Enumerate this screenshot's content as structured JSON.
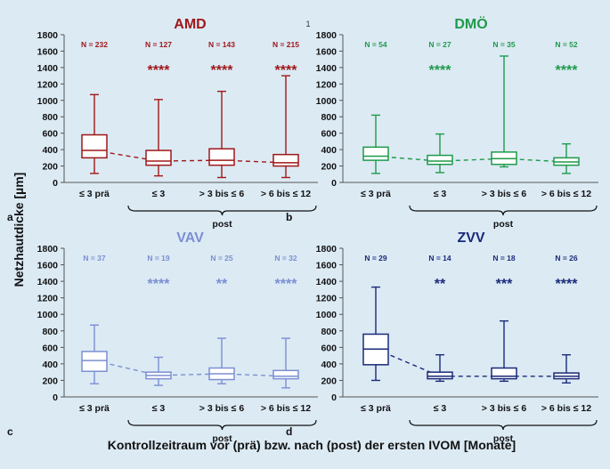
{
  "y_axis_label": "Netzhautdicke [µm]",
  "x_axis_label": "Kontrollzeitraum vor (prä) bzw. nach (post) der ersten IVOM [Monate]",
  "post_label": "post",
  "stray_mark": "1",
  "chart_data": [
    {
      "type": "box",
      "panel_letter": "a",
      "title": "AMD",
      "color": "#a01818",
      "categories": [
        "≤ 3 prä",
        "≤ 3",
        "> 3 bis ≤ 6",
        "> 6 bis ≤ 12"
      ],
      "n_labels": [
        "N = 232",
        "N = 127",
        "N = 143",
        "N = 215"
      ],
      "significance": [
        "",
        "****",
        "****",
        "****"
      ],
      "boxes": [
        {
          "min": 110,
          "q1": 300,
          "median": 390,
          "q3": 580,
          "max": 1070
        },
        {
          "min": 80,
          "q1": 210,
          "median": 260,
          "q3": 390,
          "max": 1010
        },
        {
          "min": 60,
          "q1": 210,
          "median": 270,
          "q3": 410,
          "max": 1110
        },
        {
          "min": 60,
          "q1": 200,
          "median": 240,
          "q3": 340,
          "max": 1300
        }
      ],
      "ylim": [
        0,
        1800
      ],
      "yticks": [
        0,
        200,
        400,
        600,
        800,
        1000,
        1200,
        1400,
        1600,
        1800
      ]
    },
    {
      "type": "box",
      "panel_letter": "b",
      "title": "DMÖ",
      "color": "#1f9a4a",
      "categories": [
        "≤ 3 prä",
        "≤ 3",
        "> 3 bis ≤ 6",
        "> 6 bis ≤ 12"
      ],
      "n_labels": [
        "N = 54",
        "N = 27",
        "N = 35",
        "N = 52"
      ],
      "significance": [
        "",
        "****",
        "",
        "****"
      ],
      "boxes": [
        {
          "min": 110,
          "q1": 270,
          "median": 320,
          "q3": 430,
          "max": 820
        },
        {
          "min": 120,
          "q1": 220,
          "median": 260,
          "q3": 330,
          "max": 590
        },
        {
          "min": 190,
          "q1": 220,
          "median": 290,
          "q3": 370,
          "max": 1540
        },
        {
          "min": 110,
          "q1": 210,
          "median": 250,
          "q3": 300,
          "max": 470
        }
      ],
      "ylim": [
        0,
        1800
      ],
      "yticks": [
        0,
        200,
        400,
        600,
        800,
        1000,
        1200,
        1400,
        1600,
        1800
      ]
    },
    {
      "type": "box",
      "panel_letter": "c",
      "title": "VAV",
      "color": "#7b8fd2",
      "categories": [
        "≤ 3 prä",
        "≤ 3",
        "> 3 bis ≤ 6",
        "> 6 bis ≤ 12"
      ],
      "n_labels": [
        "N = 37",
        "N = 19",
        "N = 25",
        "N = 32"
      ],
      "significance": [
        "",
        "****",
        "**",
        "****"
      ],
      "boxes": [
        {
          "min": 160,
          "q1": 310,
          "median": 440,
          "q3": 550,
          "max": 870
        },
        {
          "min": 140,
          "q1": 220,
          "median": 260,
          "q3": 300,
          "max": 480
        },
        {
          "min": 160,
          "q1": 210,
          "median": 280,
          "q3": 350,
          "max": 710
        },
        {
          "min": 110,
          "q1": 220,
          "median": 250,
          "q3": 320,
          "max": 710
        }
      ],
      "ylim": [
        0,
        1800
      ],
      "yticks": [
        0,
        200,
        400,
        600,
        800,
        1000,
        1200,
        1400,
        1600,
        1800
      ]
    },
    {
      "type": "box",
      "panel_letter": "d",
      "title": "ZVV",
      "color": "#1a2a78",
      "categories": [
        "≤ 3 prä",
        "≤ 3",
        "> 3 bis ≤ 6",
        "> 6 bis ≤ 12"
      ],
      "n_labels": [
        "N = 29",
        "N = 14",
        "N = 18",
        "N = 26"
      ],
      "significance": [
        "",
        "**",
        "***",
        "****"
      ],
      "boxes": [
        {
          "min": 200,
          "q1": 390,
          "median": 580,
          "q3": 760,
          "max": 1330
        },
        {
          "min": 190,
          "q1": 220,
          "median": 250,
          "q3": 300,
          "max": 510
        },
        {
          "min": 190,
          "q1": 220,
          "median": 250,
          "q3": 350,
          "max": 920
        },
        {
          "min": 170,
          "q1": 220,
          "median": 250,
          "q3": 290,
          "max": 510
        }
      ],
      "ylim": [
        0,
        1800
      ],
      "yticks": [
        0,
        200,
        400,
        600,
        800,
        1000,
        1200,
        1400,
        1600,
        1800
      ]
    }
  ]
}
